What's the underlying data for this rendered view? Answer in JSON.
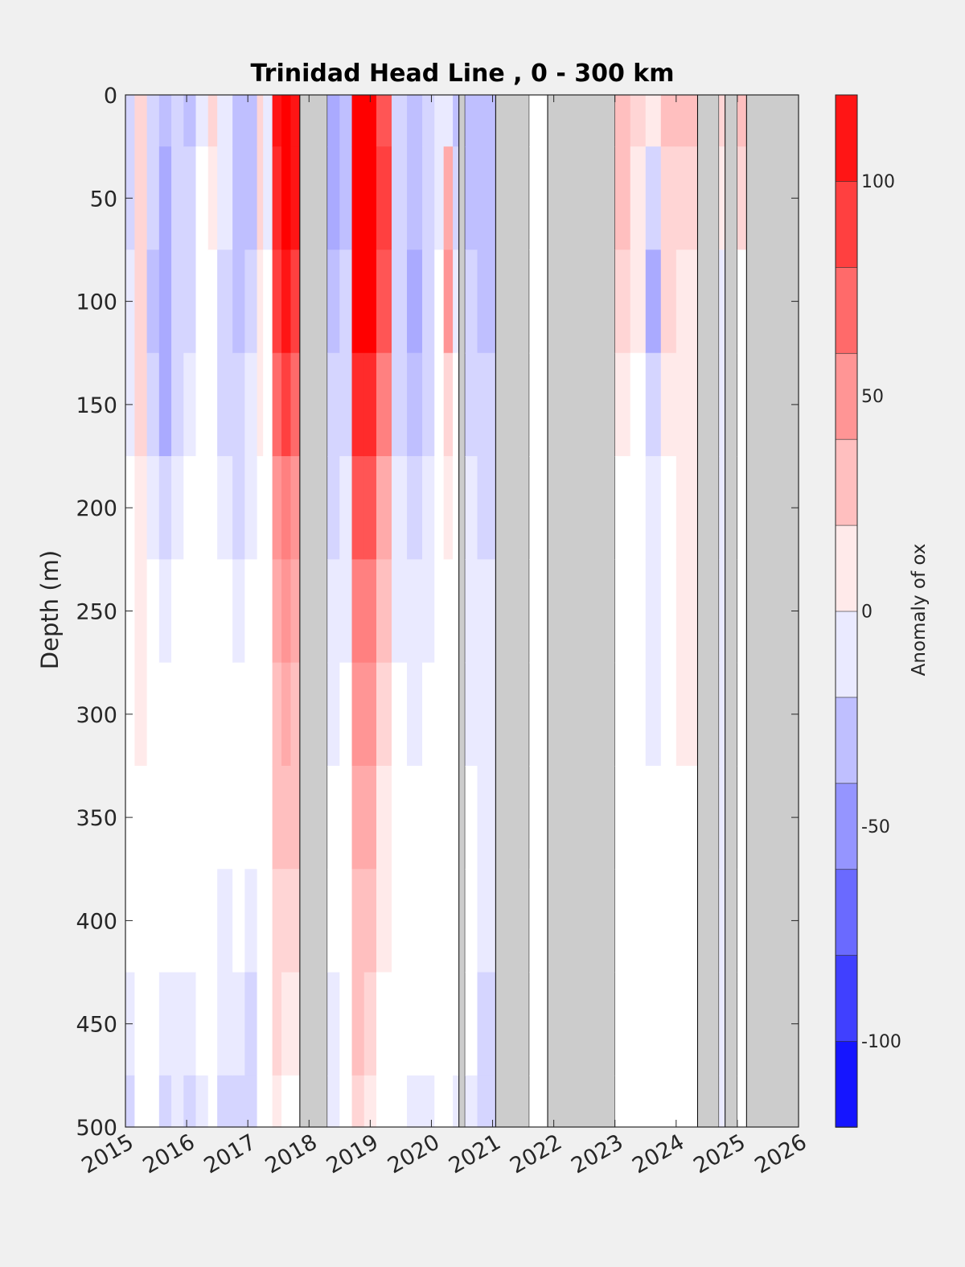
{
  "chart_data": {
    "type": "heatmap",
    "title": "Trinidad Head Line , 0 - 300 km",
    "xlabel": "",
    "ylabel": "Depth (m)",
    "xlim": [
      2015,
      2026
    ],
    "ylim": [
      0,
      500
    ],
    "y_reversed": true,
    "x_ticks": [
      "2015",
      "2016",
      "2017",
      "2018",
      "2019",
      "2020",
      "2021",
      "2022",
      "2023",
      "2024",
      "2025",
      "2026"
    ],
    "y_ticks": [
      "0",
      "50",
      "100",
      "150",
      "200",
      "250",
      "300",
      "350",
      "400",
      "450",
      "500"
    ],
    "colorbar": {
      "label": "Anomaly of ox",
      "range": [
        -120,
        120
      ],
      "step": 10,
      "ticks": [
        {
          "value": 100,
          "text": "100"
        },
        {
          "value": 50,
          "text": "50"
        },
        {
          "value": 0,
          "text": "0"
        },
        {
          "value": -50,
          "text": "-50"
        },
        {
          "value": -100,
          "text": "-100"
        }
      ],
      "negative_color": "#0000ff",
      "positive_color": "#ff0000",
      "zero_color": "#ffffff"
    },
    "nodata_color": "#cccccc",
    "columns": [
      {
        "x0": 2015.0,
        "x1": 2015.15,
        "values": [
          -20,
          -20,
          -10,
          -10,
          0,
          0,
          0,
          0,
          0,
          -10,
          -20
        ]
      },
      {
        "x0": 2015.15,
        "x1": 2015.35,
        "values": [
          20,
          20,
          20,
          20,
          10,
          10,
          10,
          0,
          0,
          0,
          0
        ]
      },
      {
        "x0": 2015.35,
        "x1": 2015.55,
        "values": [
          -20,
          -20,
          -30,
          -20,
          -10,
          0,
          0,
          0,
          0,
          0,
          0
        ]
      },
      {
        "x0": 2015.55,
        "x1": 2015.75,
        "values": [
          -30,
          -40,
          -40,
          -40,
          -20,
          -10,
          0,
          0,
          0,
          -10,
          -20
        ]
      },
      {
        "x0": 2015.75,
        "x1": 2015.95,
        "values": [
          -20,
          -20,
          -20,
          -20,
          -10,
          0,
          0,
          0,
          0,
          -10,
          -10
        ]
      },
      {
        "x0": 2015.95,
        "x1": 2016.15,
        "values": [
          -30,
          -20,
          -20,
          -10,
          0,
          0,
          0,
          0,
          0,
          -10,
          -20
        ]
      },
      {
        "x0": 2016.15,
        "x1": 2016.35,
        "values": [
          -10,
          0,
          0,
          0,
          0,
          0,
          0,
          0,
          0,
          0,
          -10
        ]
      },
      {
        "x0": 2016.35,
        "x1": 2016.5,
        "values": [
          20,
          10,
          0,
          0,
          0,
          0,
          0,
          0,
          0,
          0,
          0
        ]
      },
      {
        "x0": 2016.5,
        "x1": 2016.75,
        "values": [
          -10,
          -10,
          -20,
          -20,
          -10,
          0,
          0,
          0,
          -10,
          -10,
          -20
        ]
      },
      {
        "x0": 2016.75,
        "x1": 2016.95,
        "values": [
          -30,
          -30,
          -30,
          -20,
          -20,
          -10,
          0,
          0,
          0,
          -10,
          -20
        ]
      },
      {
        "x0": 2016.95,
        "x1": 2017.15,
        "values": [
          -30,
          -30,
          -20,
          -10,
          -10,
          0,
          0,
          0,
          -10,
          -20,
          -20
        ]
      },
      {
        "x0": 2017.15,
        "x1": 2017.25,
        "values": [
          20,
          20,
          10,
          10,
          0,
          0,
          0,
          0,
          0,
          0,
          0
        ]
      },
      {
        "x0": 2017.25,
        "x1": 2017.4,
        "values": [
          -10,
          -10,
          0,
          0,
          0,
          0,
          0,
          0,
          0,
          0,
          0
        ]
      },
      {
        "x0": 2017.4,
        "x1": 2017.55,
        "values": [
          110,
          100,
          90,
          70,
          50,
          40,
          30,
          30,
          20,
          20,
          10
        ]
      },
      {
        "x0": 2017.55,
        "x1": 2017.7,
        "values": [
          120,
          120,
          110,
          90,
          60,
          50,
          40,
          30,
          20,
          10,
          0
        ]
      },
      {
        "x0": 2017.7,
        "x1": 2017.85,
        "values": [
          110,
          110,
          90,
          70,
          50,
          40,
          30,
          30,
          20,
          10,
          0
        ]
      },
      {
        "x0": 2017.85,
        "x1": 2018.3,
        "values": [
          null,
          null,
          null,
          null,
          null,
          null,
          null,
          null,
          null,
          null,
          null
        ]
      },
      {
        "x0": 2018.3,
        "x1": 2018.5,
        "values": [
          -40,
          -40,
          -30,
          -20,
          -20,
          -10,
          -10,
          0,
          0,
          -10,
          -10
        ]
      },
      {
        "x0": 2018.5,
        "x1": 2018.7,
        "values": [
          -30,
          -30,
          -20,
          -20,
          -10,
          -10,
          0,
          0,
          0,
          0,
          0
        ]
      },
      {
        "x0": 2018.7,
        "x1": 2018.9,
        "values": [
          120,
          120,
          120,
          100,
          80,
          60,
          50,
          40,
          30,
          30,
          20
        ]
      },
      {
        "x0": 2018.9,
        "x1": 2019.1,
        "values": [
          120,
          120,
          120,
          100,
          80,
          60,
          50,
          40,
          30,
          20,
          10
        ]
      },
      {
        "x0": 2019.1,
        "x1": 2019.35,
        "values": [
          80,
          90,
          80,
          60,
          40,
          30,
          20,
          10,
          10,
          0,
          0
        ]
      },
      {
        "x0": 2019.35,
        "x1": 2019.6,
        "values": [
          -20,
          -20,
          -20,
          -20,
          -10,
          -10,
          0,
          0,
          0,
          0,
          0
        ]
      },
      {
        "x0": 2019.6,
        "x1": 2019.85,
        "values": [
          -30,
          -30,
          -40,
          -30,
          -20,
          -10,
          -10,
          0,
          0,
          0,
          -10
        ]
      },
      {
        "x0": 2019.85,
        "x1": 2020.05,
        "values": [
          -20,
          -20,
          -20,
          -20,
          -10,
          -10,
          0,
          0,
          0,
          0,
          -10
        ]
      },
      {
        "x0": 2020.05,
        "x1": 2020.2,
        "values": [
          -10,
          -10,
          0,
          0,
          0,
          0,
          0,
          0,
          0,
          0,
          0
        ]
      },
      {
        "x0": 2020.2,
        "x1": 2020.35,
        "values": [
          -10,
          40,
          50,
          20,
          10,
          0,
          0,
          0,
          0,
          0,
          0
        ]
      },
      {
        "x0": 2020.35,
        "x1": 2020.45,
        "values": [
          -30,
          -20,
          -10,
          0,
          0,
          0,
          0,
          0,
          0,
          0,
          -10
        ]
      },
      {
        "x0": 2020.45,
        "x1": 2020.55,
        "values": [
          null,
          null,
          null,
          null,
          null,
          null,
          null,
          null,
          null,
          null,
          null
        ]
      },
      {
        "x0": 2020.55,
        "x1": 2020.75,
        "values": [
          -30,
          -30,
          -20,
          -20,
          -10,
          -10,
          -10,
          0,
          0,
          0,
          -10
        ]
      },
      {
        "x0": 2020.75,
        "x1": 2021.05,
        "values": [
          -30,
          -30,
          -30,
          -20,
          -20,
          -10,
          -10,
          -10,
          -10,
          -20,
          -20
        ]
      },
      {
        "x0": 2021.05,
        "x1": 2021.6,
        "values": [
          null,
          null,
          null,
          null,
          null,
          null,
          null,
          null,
          null,
          null,
          null
        ]
      },
      {
        "x0": 2021.6,
        "x1": 2021.7,
        "values": [
          0,
          0,
          0,
          0,
          0,
          0,
          0,
          0,
          0,
          0,
          0
        ]
      },
      {
        "x0": 2021.7,
        "x1": 2021.9,
        "values": [
          0,
          0,
          0,
          0,
          0,
          0,
          0,
          0,
          0,
          0,
          0
        ]
      },
      {
        "x0": 2021.9,
        "x1": 2023.0,
        "values": [
          null,
          null,
          null,
          null,
          null,
          null,
          null,
          null,
          null,
          null,
          null
        ]
      },
      {
        "x0": 2023.0,
        "x1": 2023.25,
        "values": [
          30,
          30,
          20,
          10,
          0,
          0,
          0,
          0,
          0,
          0,
          0
        ]
      },
      {
        "x0": 2023.25,
        "x1": 2023.5,
        "values": [
          20,
          10,
          10,
          0,
          0,
          0,
          0,
          0,
          0,
          0,
          0
        ]
      },
      {
        "x0": 2023.5,
        "x1": 2023.75,
        "values": [
          10,
          -20,
          -40,
          -20,
          -10,
          -10,
          -10,
          0,
          0,
          0,
          0
        ]
      },
      {
        "x0": 2023.75,
        "x1": 2024.0,
        "values": [
          30,
          20,
          20,
          10,
          0,
          0,
          0,
          0,
          0,
          0,
          0
        ]
      },
      {
        "x0": 2024.0,
        "x1": 2024.35,
        "values": [
          30,
          20,
          10,
          10,
          10,
          10,
          10,
          0,
          0,
          0,
          0
        ]
      },
      {
        "x0": 2024.35,
        "x1": 2024.7,
        "values": [
          null,
          null,
          null,
          null,
          null,
          null,
          null,
          null,
          null,
          null,
          null
        ]
      },
      {
        "x0": 2024.7,
        "x1": 2024.8,
        "values": [
          20,
          10,
          -10,
          -10,
          -10,
          -10,
          -10,
          -10,
          -10,
          -10,
          -10
        ]
      },
      {
        "x0": 2024.8,
        "x1": 2025.0,
        "values": [
          null,
          null,
          null,
          null,
          null,
          null,
          null,
          null,
          null,
          null,
          null
        ]
      },
      {
        "x0": 2025.0,
        "x1": 2025.15,
        "values": [
          30,
          20,
          0,
          0,
          0,
          0,
          0,
          0,
          0,
          0,
          0
        ]
      },
      {
        "x0": 2025.15,
        "x1": 2026.0,
        "values": [
          null,
          null,
          null,
          null,
          null,
          null,
          null,
          null,
          null,
          null,
          null
        ]
      }
    ]
  }
}
